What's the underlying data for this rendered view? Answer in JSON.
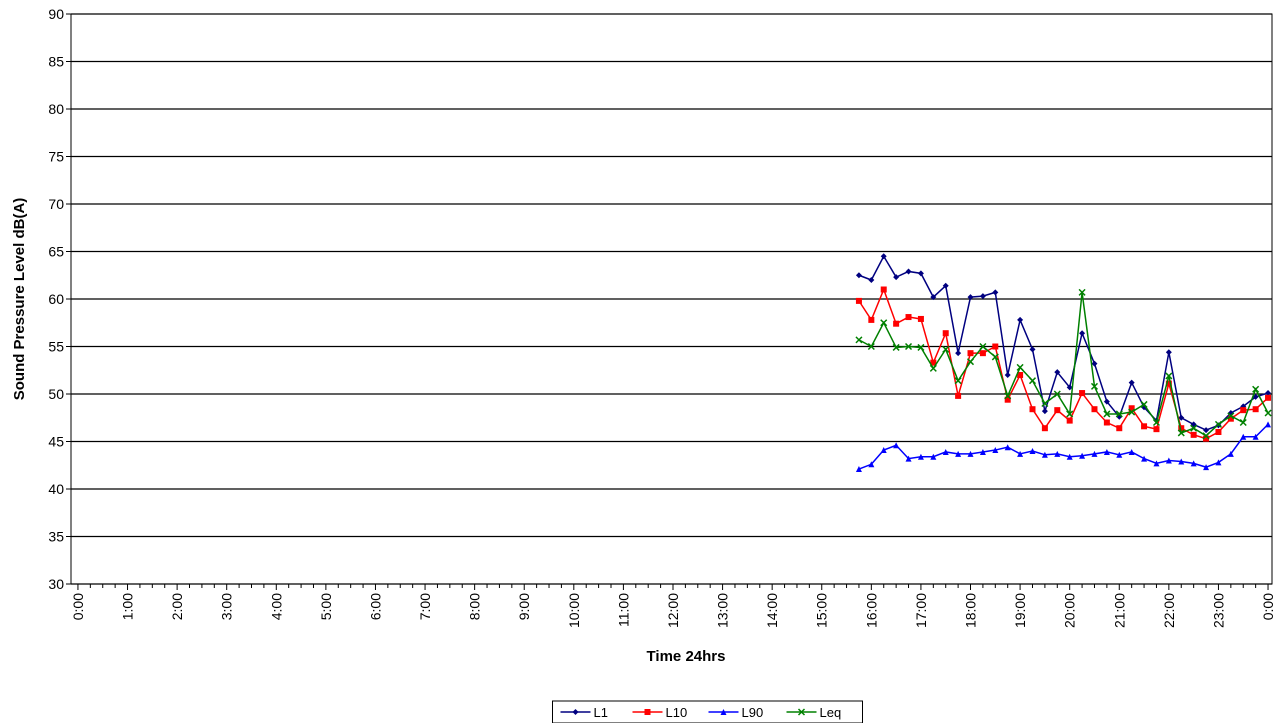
{
  "chart_data": {
    "type": "line",
    "xlabel": "Time 24hrs",
    "ylabel": "Sound Pressure Level dB(A)",
    "xlim": [
      -0.14,
      24.08
    ],
    "ylim": [
      30,
      90
    ],
    "yticks": [
      30,
      35,
      40,
      45,
      50,
      55,
      60,
      65,
      70,
      75,
      80,
      85,
      90
    ],
    "xticks": [
      {
        "value": 0,
        "label": "0:00"
      },
      {
        "value": 1,
        "label": "1:00"
      },
      {
        "value": 2,
        "label": "2:00"
      },
      {
        "value": 3,
        "label": "3:00"
      },
      {
        "value": 4,
        "label": "4:00"
      },
      {
        "value": 5,
        "label": "5:00"
      },
      {
        "value": 6,
        "label": "6:00"
      },
      {
        "value": 7,
        "label": "7:00"
      },
      {
        "value": 8,
        "label": "8:00"
      },
      {
        "value": 9,
        "label": "9:00"
      },
      {
        "value": 10,
        "label": "10:00"
      },
      {
        "value": 11,
        "label": "11:00"
      },
      {
        "value": 12,
        "label": "12:00"
      },
      {
        "value": 13,
        "label": "13:00"
      },
      {
        "value": 14,
        "label": "14:00"
      },
      {
        "value": 15,
        "label": "15:00"
      },
      {
        "value": 16,
        "label": "16:00"
      },
      {
        "value": 17,
        "label": "17:00"
      },
      {
        "value": 18,
        "label": "18:00"
      },
      {
        "value": 19,
        "label": "19:00"
      },
      {
        "value": 20,
        "label": "20:00"
      },
      {
        "value": 21,
        "label": "21:00"
      },
      {
        "value": 22,
        "label": "22:00"
      },
      {
        "value": 23,
        "label": "23:00"
      },
      {
        "value": 24,
        "label": "0:00"
      }
    ],
    "grid": true,
    "legend": "bottom",
    "x": [
      15.75,
      16,
      16.25,
      16.5,
      16.75,
      17,
      17.25,
      17.5,
      17.75,
      18,
      18.25,
      18.5,
      18.75,
      19,
      19.25,
      19.5,
      19.75,
      20,
      20.25,
      20.5,
      20.75,
      21,
      21.25,
      21.5,
      21.75,
      22,
      22.25,
      22.5,
      22.75,
      23,
      23.25,
      23.5,
      23.75,
      24
    ],
    "series": [
      {
        "name": "L1",
        "color": "#000080",
        "marker": "diamond",
        "values": [
          62.5,
          62.0,
          64.5,
          62.3,
          62.9,
          62.7,
          60.2,
          61.4,
          54.3,
          60.2,
          60.3,
          60.7,
          52.0,
          57.8,
          54.7,
          48.2,
          52.3,
          50.7,
          56.4,
          53.2,
          49.2,
          47.6,
          51.2,
          48.6,
          47.2,
          54.4,
          47.5,
          46.8,
          46.2,
          46.7,
          48.0,
          48.7,
          49.7,
          50.1
        ]
      },
      {
        "name": "L10",
        "color": "#ff0000",
        "marker": "square",
        "values": [
          59.8,
          57.8,
          61.0,
          57.4,
          58.1,
          57.9,
          53.3,
          56.4,
          49.8,
          54.3,
          54.3,
          55.0,
          49.4,
          52.0,
          48.4,
          46.4,
          48.3,
          47.2,
          50.1,
          48.4,
          47.0,
          46.4,
          48.5,
          46.6,
          46.3,
          51.1,
          46.4,
          45.7,
          45.3,
          46.0,
          47.4,
          48.3,
          48.4,
          49.6
        ]
      },
      {
        "name": "L90",
        "color": "#0000ff",
        "marker": "triangle",
        "values": [
          42.1,
          42.6,
          44.1,
          44.6,
          43.2,
          43.4,
          43.4,
          43.9,
          43.7,
          43.7,
          43.9,
          44.1,
          44.4,
          43.7,
          44.0,
          43.6,
          43.7,
          43.4,
          43.5,
          43.7,
          43.9,
          43.6,
          43.9,
          43.2,
          42.7,
          43.0,
          42.9,
          42.7,
          42.3,
          42.8,
          43.7,
          45.5,
          45.5,
          46.8
        ]
      },
      {
        "name": "Leq",
        "color": "#008000",
        "marker": "x",
        "values": [
          55.7,
          55.0,
          57.5,
          54.9,
          55.0,
          54.9,
          52.7,
          54.7,
          51.4,
          53.4,
          55.0,
          53.9,
          49.8,
          52.8,
          51.4,
          49.0,
          50.0,
          47.9,
          60.7,
          50.8,
          47.9,
          47.9,
          48.1,
          48.9,
          47.0,
          51.9,
          45.9,
          46.4,
          45.6,
          46.8,
          47.7,
          47.0,
          50.5,
          48.0
        ]
      }
    ]
  }
}
